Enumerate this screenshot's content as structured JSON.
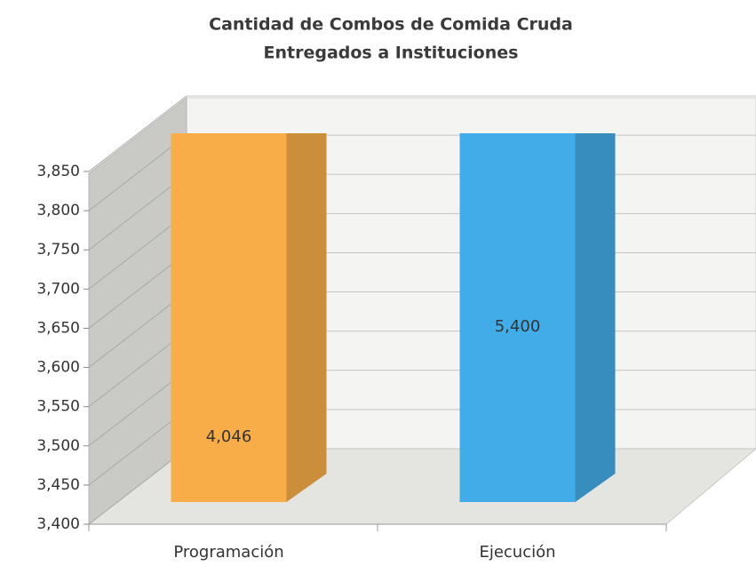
{
  "chart_data": {
    "type": "bar3d",
    "title": "Cantidad de Combos de Comida Cruda",
    "subtitle": "Entregados a Instituciones",
    "categories": [
      "Programación",
      "Ejecución"
    ],
    "values": [
      4046,
      5400
    ],
    "value_labels": [
      "4,046",
      "5,400"
    ],
    "colors": [
      "#f8ad48",
      "#42ace8"
    ],
    "ylim": [
      3400,
      3850
    ],
    "yticks": [
      {
        "value": 3400,
        "label": "3,400"
      },
      {
        "value": 3450,
        "label": "3,450"
      },
      {
        "value": 3500,
        "label": "3,500"
      },
      {
        "value": 3550,
        "label": "3,550"
      },
      {
        "value": 3600,
        "label": "3,600"
      },
      {
        "value": 3650,
        "label": "3,650"
      },
      {
        "value": 3700,
        "label": "3,700"
      },
      {
        "value": 3750,
        "label": "3,750"
      },
      {
        "value": 3800,
        "label": "3,800"
      },
      {
        "value": 3850,
        "label": "3,850"
      }
    ],
    "grid": true
  }
}
